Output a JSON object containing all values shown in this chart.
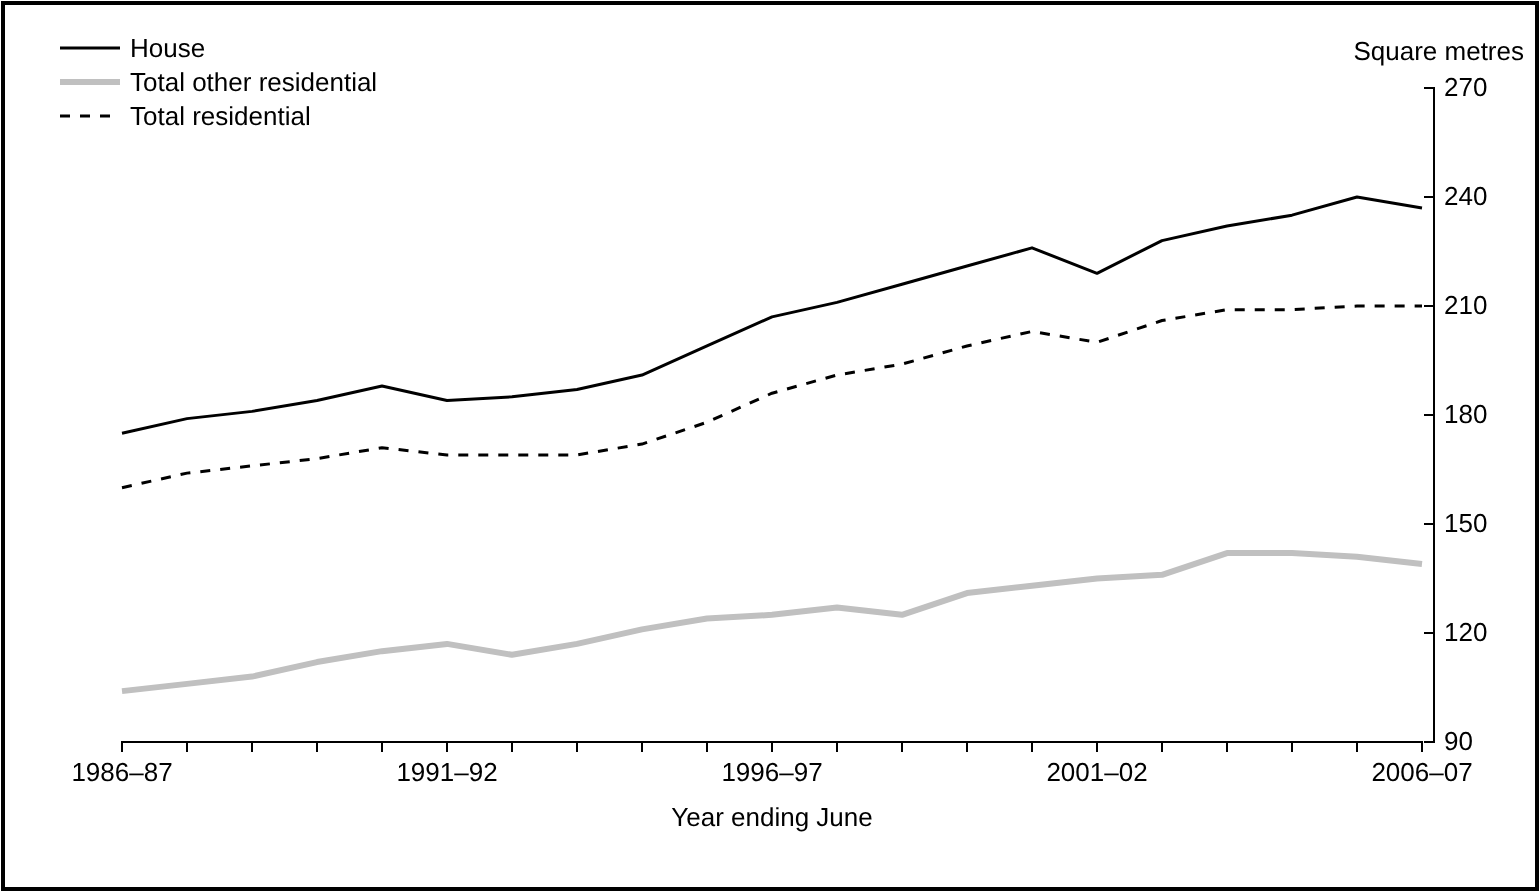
{
  "chart_data": {
    "type": "line",
    "xlabel": "Year ending June",
    "ylabel": "Square metres",
    "categories": [
      "1986–87",
      null,
      null,
      null,
      null,
      "1991–92",
      null,
      null,
      null,
      null,
      "1996–97",
      null,
      null,
      null,
      null,
      "2001–02",
      null,
      null,
      null,
      null,
      "2006–07"
    ],
    "series": [
      {
        "name": "House",
        "color": "#000000",
        "line_style": "solid",
        "values": [
          175,
          179,
          181,
          184,
          188,
          184,
          185,
          187,
          191,
          199,
          207,
          211,
          216,
          221,
          226,
          219,
          228,
          232,
          235,
          240,
          237
        ]
      },
      {
        "name": "Total other residential",
        "color": "#c0c0c0",
        "line_style": "solid",
        "values": [
          104,
          106,
          108,
          112,
          115,
          117,
          114,
          117,
          121,
          124,
          125,
          127,
          125,
          131,
          133,
          135,
          136,
          142,
          142,
          141,
          139
        ]
      },
      {
        "name": "Total residential",
        "color": "#000000",
        "line_style": "dashed",
        "values": [
          160,
          164,
          166,
          168,
          171,
          169,
          169,
          169,
          172,
          178,
          186,
          191,
          194,
          199,
          203,
          200,
          206,
          209,
          209,
          210,
          210
        ]
      }
    ],
    "ylim": [
      90,
      270
    ],
    "yticks": [
      90,
      120,
      150,
      180,
      210,
      240,
      270
    ],
    "grid": false,
    "legend": "top left"
  }
}
